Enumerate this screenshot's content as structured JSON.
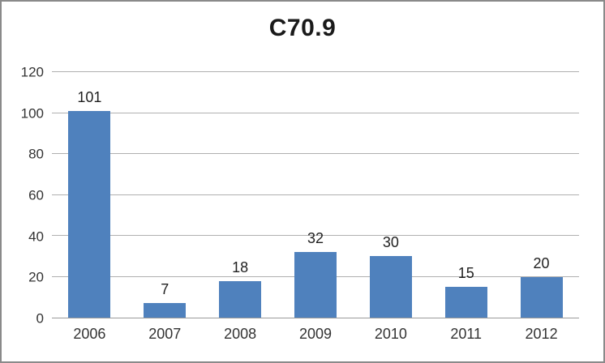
{
  "window": {
    "border_color": "#8a8a8a",
    "background": "#ffffff"
  },
  "chart_data": {
    "type": "bar",
    "title": "C70.9",
    "categories": [
      "2006",
      "2007",
      "2008",
      "2009",
      "2010",
      "2011",
      "2012"
    ],
    "values": [
      101,
      7,
      18,
      32,
      30,
      15,
      20
    ],
    "data_labels": [
      101,
      7,
      18,
      32,
      30,
      15,
      20
    ],
    "xlabel": "",
    "ylabel": "",
    "ylim": [
      0,
      120
    ],
    "ytick_step": 20,
    "ytick_labels": [
      "0",
      "20",
      "40",
      "60",
      "80",
      "100",
      "120"
    ],
    "grid": "horizontal",
    "legend": "none",
    "bar_color": "#4f81bd",
    "gridline_color": "#b0b0b0",
    "axis_line_color": "#9a9a9a",
    "tick_text_color": "#333333",
    "data_label_color": "#1f1f1f",
    "title_color": "#1a1a1a"
  }
}
